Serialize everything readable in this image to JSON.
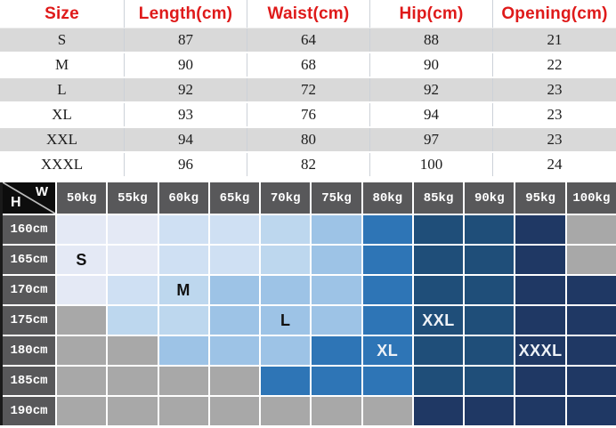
{
  "chart_data": [
    {
      "type": "table",
      "title": "Garment measurements by size",
      "columns": [
        "Size",
        "Length(cm)",
        "Waist(cm)",
        "Hip(cm)",
        "Opening(cm)"
      ],
      "rows": [
        [
          "S",
          "87",
          "64",
          "88",
          "21"
        ],
        [
          "M",
          "90",
          "68",
          "90",
          "22"
        ],
        [
          "L",
          "92",
          "72",
          "92",
          "23"
        ],
        [
          "XL",
          "93",
          "76",
          "94",
          "23"
        ],
        [
          "XXL",
          "94",
          "80",
          "97",
          "23"
        ],
        [
          "XXXL",
          "96",
          "82",
          "100",
          "24"
        ]
      ],
      "header_text_color": "#df1a1a",
      "zebra_row_color": "#d9d9d9"
    },
    {
      "type": "heatmap",
      "title": "Recommended size by height (H) and weight (W)",
      "row_axis_letter": "H",
      "col_axis_letter": "W",
      "x_labels": [
        "50kg",
        "55kg",
        "60kg",
        "65kg",
        "70kg",
        "75kg",
        "80kg",
        "85kg",
        "90kg",
        "95kg",
        "100kg"
      ],
      "y_labels": [
        "160cm",
        "165cm",
        "170cm",
        "175cm",
        "180cm",
        "185cm",
        "190cm"
      ],
      "legend_position": "none",
      "grid": true,
      "header_bg": "#58585a",
      "corner_bg": "#0d0d0d",
      "gridline_color": "#ffffff",
      "palette": {
        "0": "#e4e9f5",
        "1": "#cfe0f3",
        "2": "#bdd7ee",
        "3": "#9dc3e6",
        "4": "#2e75b6",
        "5": "#1f4e79",
        "6": "#1f3864",
        "g": "#a8a8a8"
      },
      "cells": [
        [
          "0",
          "0",
          "1",
          "1",
          "2",
          "3",
          "4",
          "5",
          "5",
          "6",
          "g"
        ],
        [
          "0",
          "0",
          "1",
          "1",
          "2",
          "3",
          "4",
          "5",
          "5",
          "6",
          "g"
        ],
        [
          "0",
          "1",
          "2",
          "3",
          "3",
          "3",
          "4",
          "5",
          "5",
          "6",
          "6"
        ],
        [
          "g",
          "2",
          "2",
          "3",
          "3",
          "3",
          "4",
          "5",
          "5",
          "6",
          "6"
        ],
        [
          "g",
          "g",
          "3",
          "3",
          "3",
          "4",
          "4",
          "5",
          "5",
          "6",
          "6"
        ],
        [
          "g",
          "g",
          "g",
          "g",
          "4",
          "4",
          "4",
          "5",
          "5",
          "6",
          "6"
        ],
        [
          "g",
          "g",
          "g",
          "g",
          "g",
          "g",
          "g",
          "6",
          "6",
          "6",
          "6"
        ]
      ],
      "markers": [
        {
          "row": 1,
          "col": 0,
          "text": "S",
          "color": "#111111"
        },
        {
          "row": 2,
          "col": 2,
          "text": "M",
          "color": "#111111"
        },
        {
          "row": 3,
          "col": 4,
          "text": "L",
          "color": "#111111"
        },
        {
          "row": 3,
          "col": 7,
          "text": "XXL",
          "color": "#eef2f7"
        },
        {
          "row": 4,
          "col": 6,
          "text": "XL",
          "color": "#eef2f7"
        },
        {
          "row": 4,
          "col": 9,
          "text": "XXXL",
          "color": "#eef2f7"
        }
      ]
    }
  ]
}
